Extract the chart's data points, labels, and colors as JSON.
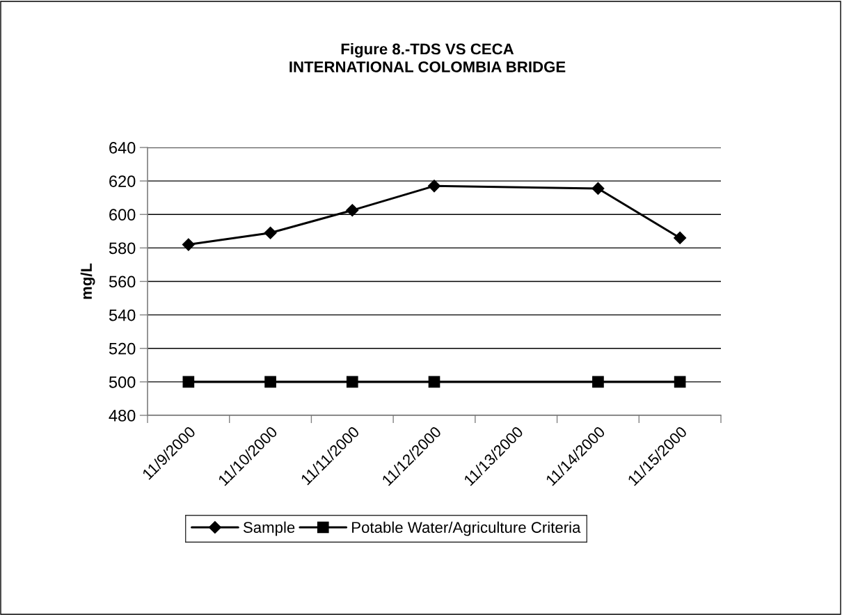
{
  "chart_data": {
    "type": "line",
    "title": "Figure 8.-TDS VS CECA\nINTERNATIONAL COLOMBIA BRIDGE",
    "ylabel": "mg/L",
    "x": [
      "2000-11-09T12:00",
      "2000-11-10T12:00",
      "2000-11-11T12:00",
      "2000-11-12T12:00",
      "2000-11-14T12:00",
      "2000-11-15T12:00"
    ],
    "series": [
      {
        "name": "Sample",
        "color": "#000000",
        "marker": "diamond",
        "values": [
          582,
          589,
          602.5,
          617,
          615.5,
          586
        ]
      },
      {
        "name": "Potable Water/Agriculture Criteria",
        "color": "#000000",
        "marker": "square",
        "values": [
          500,
          500,
          500,
          500,
          500,
          500
        ]
      }
    ],
    "xlim": [
      "2000-11-09",
      "2000-11-16"
    ],
    "xticks": [
      {
        "value": "2000-11-09",
        "label": null
      },
      {
        "value": "2000-11-10",
        "label": null
      },
      {
        "value": "2000-11-11",
        "label": null
      },
      {
        "value": "2000-11-12",
        "label": null
      },
      {
        "value": "2000-11-13",
        "label": null
      },
      {
        "value": "2000-11-14",
        "label": null
      },
      {
        "value": "2000-11-15",
        "label": null
      },
      {
        "value": "2000-11-16",
        "label": null
      },
      {
        "value": "2000-11-09T12:00",
        "label": "11/9/2000"
      },
      {
        "value": "2000-11-10T12:00",
        "label": "11/10/2000"
      },
      {
        "value": "2000-11-11T12:00",
        "label": "11/11/2000"
      },
      {
        "value": "2000-11-12T12:00",
        "label": "11/12/2000"
      },
      {
        "value": "2000-11-13T12:00",
        "label": "11/13/2000"
      },
      {
        "value": "2000-11-14T12:00",
        "label": "11/14/2000"
      },
      {
        "value": "2000-11-15T12:00",
        "label": "11/15/2000"
      }
    ],
    "ylim": [
      480,
      640
    ],
    "yticks": [
      480,
      500,
      520,
      540,
      560,
      580,
      600,
      620,
      640
    ],
    "grid": "y",
    "legend": "bottom",
    "line_style": "solid"
  }
}
